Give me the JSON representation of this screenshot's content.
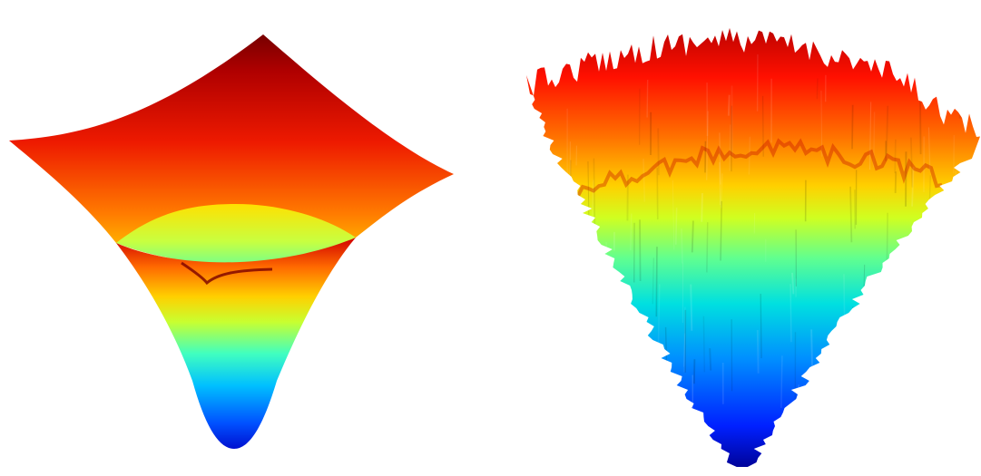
{
  "figure": {
    "background": "#ffffff",
    "colormap": "jet",
    "colormap_stops": [
      "#00008f",
      "#0000ff",
      "#00ffff",
      "#ffff00",
      "#ff0000",
      "#800000"
    ],
    "panels": [
      {
        "id": "smooth",
        "surface": "smooth-basin",
        "noise": 0
      },
      {
        "id": "rugged",
        "surface": "rugged-basin",
        "noise": 1
      }
    ]
  }
}
